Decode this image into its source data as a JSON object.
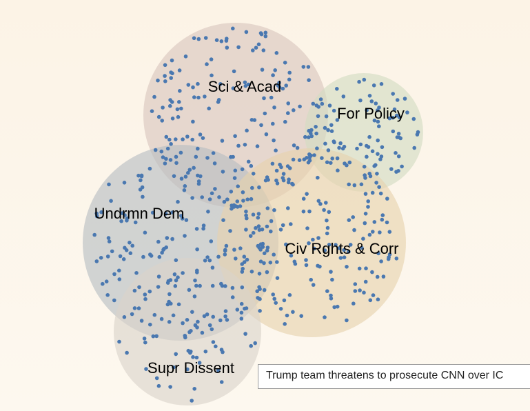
{
  "chart_data": {
    "type": "bubble-cluster",
    "point_color": "#4a78b0",
    "clusters": [
      {
        "name": "Sci & Acad",
        "color": "#d8c5bd",
        "count": 170
      },
      {
        "name": "For Policy",
        "color": "#d2dbc2",
        "count": 90
      },
      {
        "name": "Undrmn Dem",
        "color": "#b7bdc2",
        "count": 150
      },
      {
        "name": "Civ Rghts & Corr",
        "color": "#e6d2ad",
        "count": 160
      },
      {
        "name": "Supr Dissent",
        "color": "#dad4c9",
        "count": 70
      }
    ]
  },
  "tooltip": {
    "text": "Trump team threatens to prosecute CNN over IC"
  }
}
